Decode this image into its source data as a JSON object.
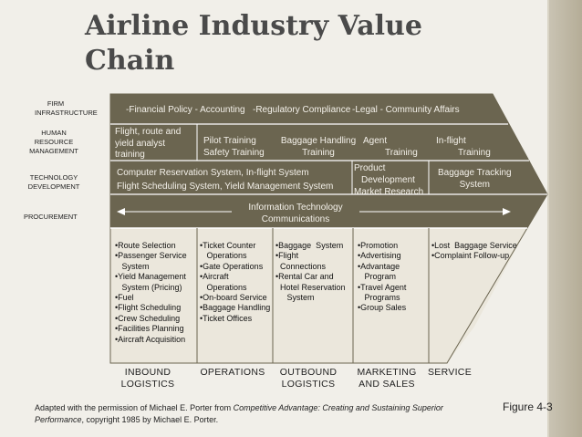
{
  "title": {
    "line1": "Airline Industry Value",
    "line2": "Chain"
  },
  "support_labels": {
    "firm": [
      "FIRM",
      "INFRASTRUCTURE"
    ],
    "hr": [
      "HUMAN",
      "RESOURCE",
      "MANAGEMENT"
    ],
    "tech": [
      "TECHNOLOGY",
      "DEVELOPMENT"
    ],
    "procurement": "PROCUREMENT"
  },
  "firm_row": {
    "a": "-Financial Policy - Accounting",
    "b": "-Regulatory Compliance",
    "c": "-Legal - Community Affairs"
  },
  "hr_row": {
    "a": [
      "Flight, route and",
      "yield analyst",
      "training"
    ],
    "b": [
      "Pilot Training",
      "Safety Training"
    ],
    "c": [
      "Baggage Handling",
      "Training"
    ],
    "d": [
      "Agent",
      "Training"
    ],
    "e": [
      "In-flight",
      "Training"
    ]
  },
  "tech_row": {
    "a": "Computer Reservation System, In-flight System",
    "b": "Flight Scheduling System, Yield Management System",
    "c": [
      "Product",
      "Development",
      "Market Research"
    ],
    "d": [
      "Baggage Tracking",
      "System"
    ]
  },
  "procurement_row": {
    "line1": "Information Technology",
    "line2": "Communications"
  },
  "primary": {
    "inbound": "•Route Selection\n•Passenger Service\n   System\n•Yield Management\n   System (Pricing)\n•Fuel\n•Flight Scheduling\n•Crew Scheduling\n•Facilities Planning\n•Aircraft Acquisition",
    "operations": "•Ticket Counter\n   Operations\n•Gate Operations\n•Aircraft\n   Operations\n•On-board Service\n•Baggage Handling\n•Ticket Offices",
    "outbound": "•Baggage  System\n•Flight\n  Connections\n•Rental Car and\n  Hotel Reservation\n     System",
    "marketing": "•Promotion\n•Advertising\n•Advantage\n   Program\n•Travel Agent\n   Programs\n•Group Sales",
    "service": "•Lost  Baggage Service\n•Complaint Follow-up"
  },
  "primary_labels": {
    "inbound": [
      "INBOUND",
      "LOGISTICS"
    ],
    "operations": [
      "OPERATIONS"
    ],
    "outbound": [
      "OUTBOUND",
      "LOGISTICS"
    ],
    "marketing": [
      "MARKETING",
      "AND SALES"
    ],
    "service": [
      "SERVICE"
    ]
  },
  "footer": {
    "p1": "Adapted with the permission of Michael E. Porter from ",
    "italic1": "Competitive Advantage: Creating and Sustaining Superior",
    "italic2": "Performance",
    "p2": ", copyright 1985 by Michael E. Porter."
  },
  "figure_label": "Figure 4-3",
  "colors": {
    "support": "#6b6550",
    "primary": "#ebe7dc",
    "line": "#ffffff"
  }
}
